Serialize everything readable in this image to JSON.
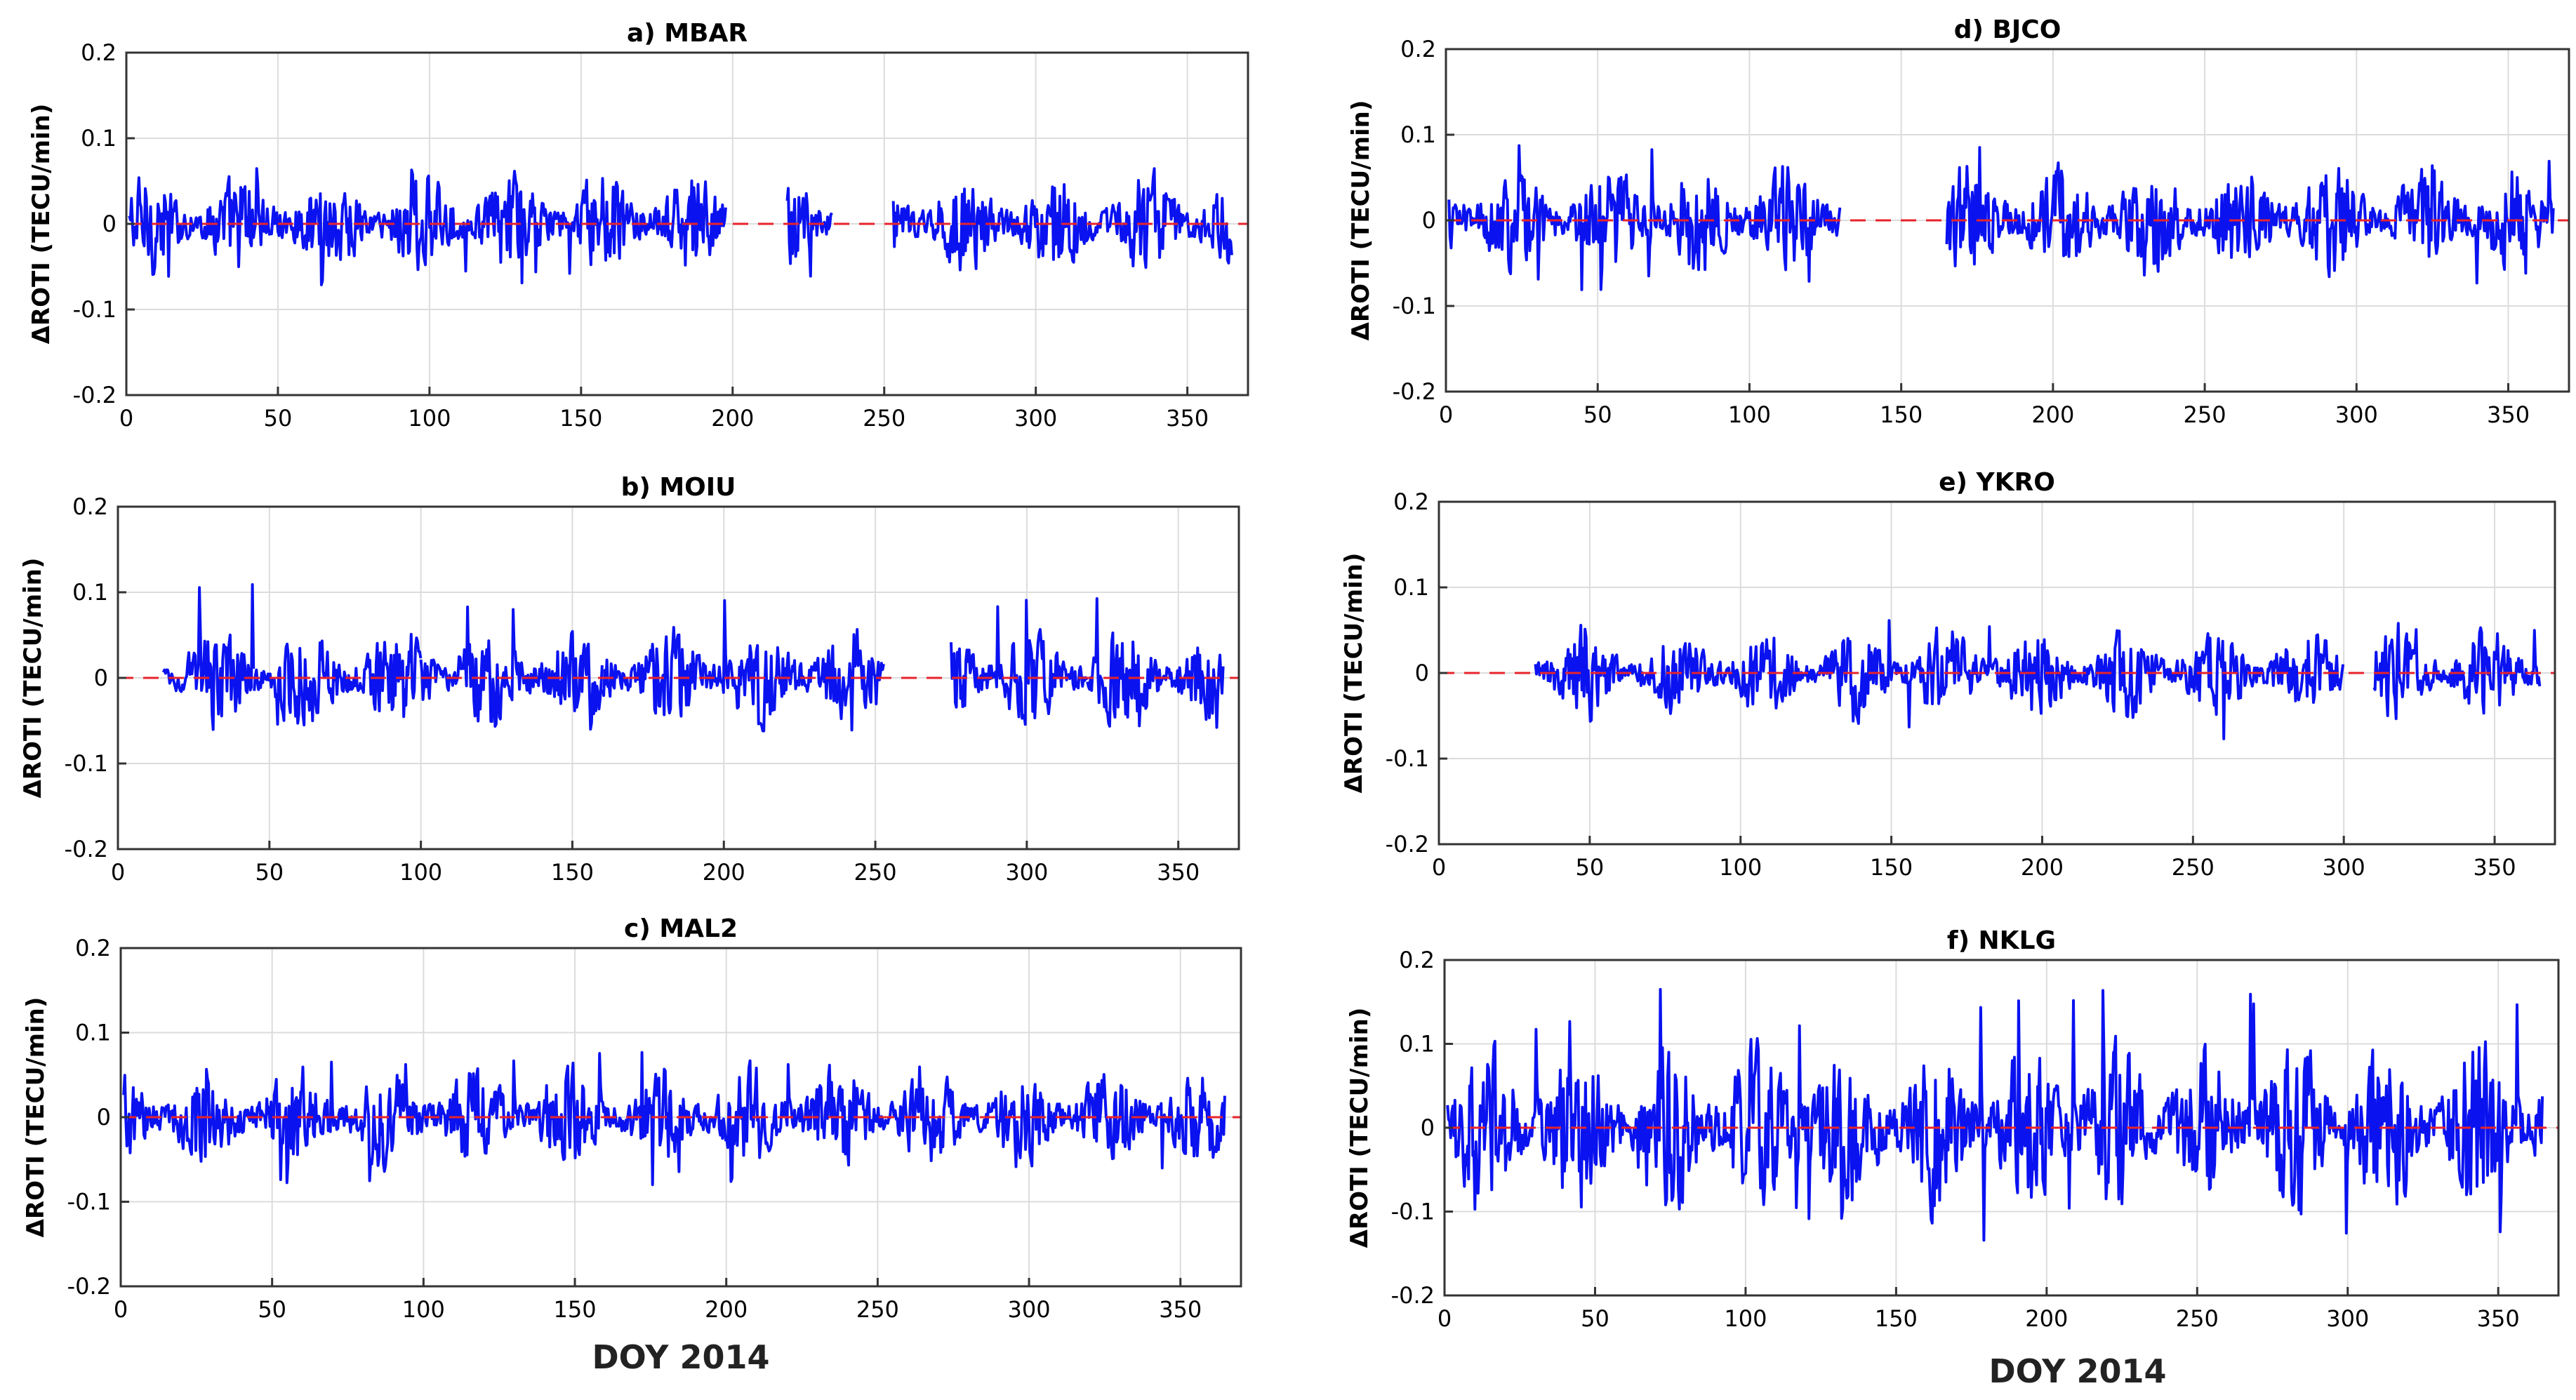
{
  "figure": {
    "xlabel_left": "DOY 2014",
    "xlabel_right": "DOY 2014",
    "colors": {
      "series": "#0a12f0",
      "zero_line": "#e8232b",
      "grid": "#dcdcdc",
      "axis": "#333333"
    }
  },
  "chart_data": [
    {
      "type": "line",
      "panel": "a",
      "title": "a) MBAR",
      "xlabel": "",
      "ylabel": "ΔROTI (TECU/min)",
      "xlim": [
        0,
        370
      ],
      "ylim": [
        -0.2,
        0.2
      ],
      "xticks": [
        "0",
        "50",
        "100",
        "150",
        "200",
        "250",
        "300",
        "350"
      ],
      "yticks": [
        "-0.2",
        "-0.1",
        "0",
        "0.1",
        "0.2"
      ],
      "grid": true,
      "reference_line": {
        "y": 0,
        "style": "dashed"
      },
      "segments": [
        [
          1,
          198
        ],
        [
          218,
          233
        ],
        [
          253,
          365
        ]
      ],
      "amplitude": 0.04,
      "min_value": -0.072,
      "max_value": 0.065
    },
    {
      "type": "line",
      "panel": "b",
      "title": "b) MOIU",
      "xlabel": "",
      "ylabel": "ΔROTI (TECU/min)",
      "xlim": [
        0,
        370
      ],
      "ylim": [
        -0.2,
        0.2
      ],
      "xticks": [
        "0",
        "50",
        "100",
        "150",
        "200",
        "250",
        "300",
        "350"
      ],
      "yticks": [
        "-0.2",
        "-0.1",
        "0",
        "0.1",
        "0.2"
      ],
      "grid": true,
      "reference_line": {
        "y": 0,
        "style": "dashed"
      },
      "segments": [
        [
          15,
          45
        ],
        [
          45,
          100
        ],
        [
          100,
          160
        ],
        [
          160,
          253
        ],
        [
          275,
          320
        ],
        [
          320,
          365
        ]
      ],
      "amplitude": 0.04,
      "min_value": -0.062,
      "max_value": 0.113
    },
    {
      "type": "line",
      "panel": "c",
      "title": "c) MAL2",
      "xlabel": "",
      "ylabel": "ΔROTI (TECU/min)",
      "xlim": [
        0,
        370
      ],
      "ylim": [
        -0.2,
        0.2
      ],
      "xticks": [
        "0",
        "50",
        "100",
        "150",
        "200",
        "250",
        "300",
        "350"
      ],
      "yticks": [
        "-0.2",
        "-0.1",
        "0",
        "0.1",
        "0.2"
      ],
      "grid": true,
      "reference_line": {
        "y": 0,
        "style": "dashed"
      },
      "segments": [
        [
          1,
          365
        ]
      ],
      "amplitude": 0.04,
      "min_value": -0.082,
      "max_value": 0.08
    },
    {
      "type": "line",
      "panel": "d",
      "title": "d) BJCO",
      "xlabel": "",
      "ylabel": "ΔROTI (TECU/min)",
      "xlim": [
        0,
        370
      ],
      "ylim": [
        -0.2,
        0.2
      ],
      "xticks": [
        "0",
        "50",
        "100",
        "150",
        "200",
        "250",
        "300",
        "350"
      ],
      "yticks": [
        "-0.2",
        "-0.1",
        "0",
        "0.1",
        "0.2"
      ],
      "grid": true,
      "reference_line": {
        "y": 0,
        "style": "dashed"
      },
      "segments": [
        [
          1,
          130
        ],
        [
          165,
          365
        ]
      ],
      "amplitude": 0.045,
      "min_value": -0.082,
      "max_value": 0.09
    },
    {
      "type": "line",
      "panel": "e",
      "title": "e) YKRO",
      "xlabel": "",
      "ylabel": "ΔROTI (TECU/min)",
      "xlim": [
        0,
        370
      ],
      "ylim": [
        -0.2,
        0.2
      ],
      "xticks": [
        "0",
        "50",
        "100",
        "150",
        "200",
        "250",
        "300",
        "350"
      ],
      "yticks": [
        "-0.2",
        "-0.1",
        "0",
        "0.1",
        "0.2"
      ],
      "grid": true,
      "reference_line": {
        "y": 0,
        "style": "dashed"
      },
      "segments": [
        [
          32,
          300
        ],
        [
          310,
          365
        ]
      ],
      "amplitude": 0.035,
      "min_value": -0.077,
      "max_value": 0.062
    },
    {
      "type": "line",
      "panel": "f",
      "title": "f) NKLG",
      "xlabel": "",
      "ylabel": "ΔROTI (TECU/min)",
      "xlim": [
        0,
        370
      ],
      "ylim": [
        -0.2,
        0.2
      ],
      "xticks": [
        "0",
        "50",
        "100",
        "150",
        "200",
        "250",
        "300",
        "350"
      ],
      "yticks": [
        "-0.2",
        "-0.1",
        "0",
        "0.1",
        "0.2"
      ],
      "grid": true,
      "reference_line": {
        "y": 0,
        "style": "dashed"
      },
      "segments": [
        [
          1,
          365
        ]
      ],
      "amplitude": 0.07,
      "min_value": -0.135,
      "max_value": 0.165
    }
  ]
}
